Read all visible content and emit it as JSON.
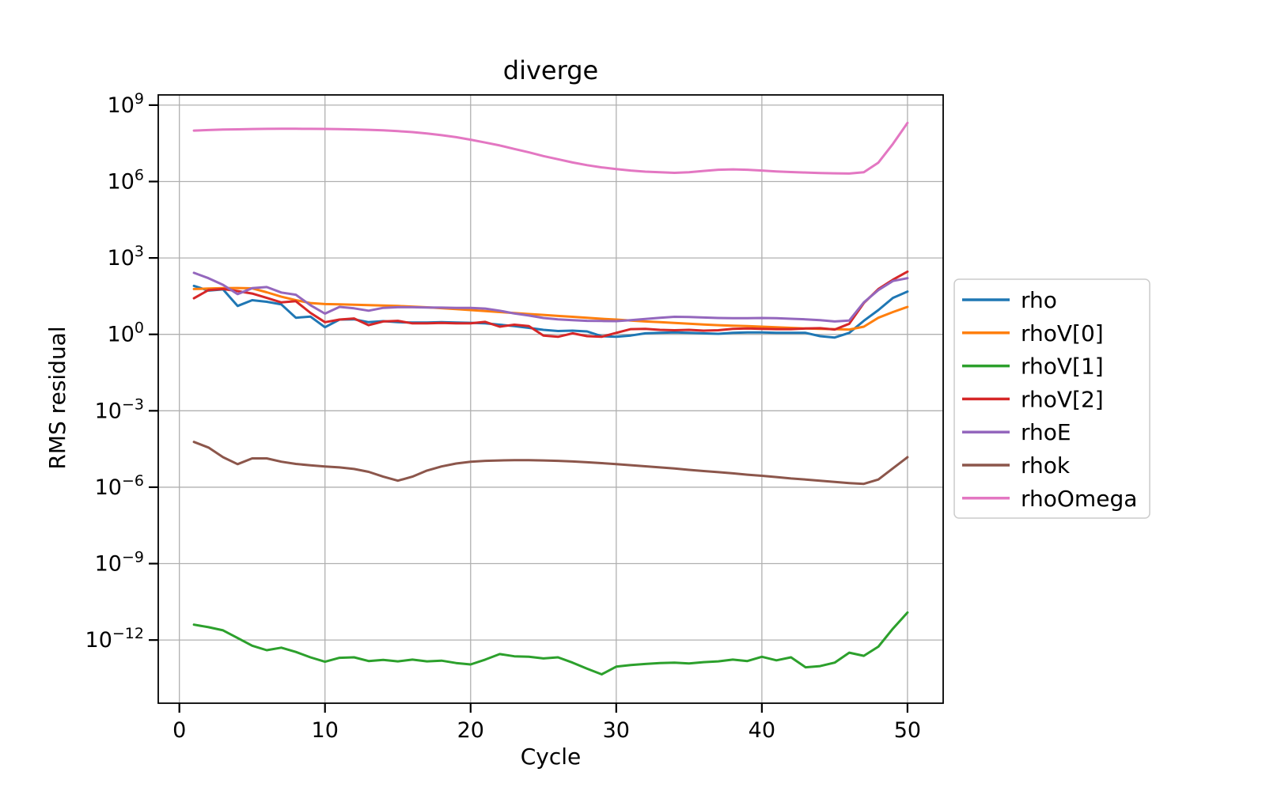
{
  "figure": {
    "title": "diverge",
    "xlabel": "Cycle",
    "ylabel": "RMS residual"
  },
  "chart_data": {
    "type": "line",
    "title": "diverge",
    "xlabel": "Cycle",
    "ylabel": "RMS residual",
    "grid": true,
    "background_color": "#ffffff",
    "grid_color": "#b0b0b0",
    "spine_color": "#000000",
    "legend": {
      "position": "outside-right",
      "border_color": "#cccccc",
      "fill_color": "#ffffff"
    },
    "x_axis": {
      "label": "Cycle",
      "min": -1.45,
      "max": 52.45,
      "ticks": [
        0,
        10,
        20,
        30,
        40,
        50
      ]
    },
    "y_axis": {
      "label": "RMS residual",
      "scale": "log",
      "top_exponent": 9.4,
      "bottom_exponent": -14.48,
      "tick_exponents": [
        9,
        6,
        3,
        0,
        -3,
        -6,
        -9,
        -12
      ]
    },
    "x": [
      1,
      2,
      3,
      4,
      5,
      6,
      7,
      8,
      9,
      10,
      11,
      12,
      13,
      14,
      15,
      16,
      17,
      18,
      19,
      20,
      21,
      22,
      23,
      24,
      25,
      26,
      27,
      28,
      29,
      30,
      31,
      32,
      33,
      34,
      35,
      36,
      37,
      38,
      39,
      40,
      41,
      42,
      43,
      44,
      45,
      46,
      47,
      48,
      49,
      50
    ],
    "series": [
      {
        "name": "rho",
        "color": "#1f77b4",
        "values": [
          80,
          52,
          58,
          13,
          22,
          19,
          15,
          4.5,
          5,
          1.9,
          3.8,
          3.9,
          3,
          3.3,
          3,
          2.9,
          2.9,
          3,
          2.9,
          2.85,
          2.7,
          2.4,
          2.1,
          1.8,
          1.5,
          1.35,
          1.4,
          1.3,
          0.85,
          0.8,
          0.9,
          1.1,
          1.15,
          1.2,
          1.15,
          1.1,
          1.05,
          1.15,
          1.2,
          1.2,
          1.15,
          1.15,
          1.15,
          0.85,
          0.75,
          1.15,
          3.4,
          9,
          27,
          48
        ]
      },
      {
        "name": "rhoV[0]",
        "color": "#ff7f0e",
        "values": [
          60,
          63,
          65,
          66,
          64,
          45,
          30,
          22,
          17,
          15.5,
          15,
          14.5,
          14,
          13.5,
          13,
          12.3,
          11.5,
          10.7,
          9.8,
          9,
          8.2,
          7.5,
          6.9,
          6.3,
          5.8,
          5.3,
          4.9,
          4.5,
          4.1,
          3.8,
          3.5,
          3.2,
          3,
          2.8,
          2.6,
          2.45,
          2.3,
          2.2,
          2.1,
          2,
          1.9,
          1.8,
          1.7,
          1.65,
          1.6,
          1.55,
          2,
          4.5,
          7.5,
          12
        ]
      },
      {
        "name": "rhoV[1]",
        "color": "#2ca02c",
        "values": [
          4e-12,
          3.2e-12,
          2.4e-12,
          1.2e-12,
          6e-13,
          4e-13,
          5e-13,
          3.4e-13,
          2.1e-13,
          1.4e-13,
          2e-13,
          2.1e-13,
          1.5e-13,
          1.65e-13,
          1.45e-13,
          1.7e-13,
          1.45e-13,
          1.55e-13,
          1.25e-13,
          1.1e-13,
          1.7e-13,
          2.8e-13,
          2.3e-13,
          2.2e-13,
          1.9e-13,
          2.1e-13,
          1.3e-13,
          7.5e-14,
          4.5e-14,
          9e-14,
          1.05e-13,
          1.15e-13,
          1.25e-13,
          1.3e-13,
          1.2e-13,
          1.35e-13,
          1.45e-13,
          1.7e-13,
          1.5e-13,
          2.2e-13,
          1.6e-13,
          2.1e-13,
          8.5e-14,
          9.5e-14,
          1.3e-13,
          3.2e-13,
          2.4e-13,
          5.5e-13,
          2.8e-12,
          1.2e-11
        ]
      },
      {
        "name": "rhoV[2]",
        "color": "#d62728",
        "values": [
          26,
          55,
          60,
          50,
          40,
          27,
          18,
          20,
          7,
          3,
          3.8,
          4.2,
          2.3,
          3.2,
          3.4,
          2.7,
          2.7,
          2.8,
          2.7,
          2.7,
          3.1,
          2,
          2.4,
          2.1,
          0.9,
          0.8,
          1.1,
          0.85,
          0.8,
          1.15,
          1.6,
          1.65,
          1.5,
          1.45,
          1.5,
          1.4,
          1.45,
          1.65,
          1.7,
          1.65,
          1.6,
          1.6,
          1.7,
          1.75,
          1.55,
          2.6,
          17,
          60,
          140,
          290
        ]
      },
      {
        "name": "rhoE",
        "color": "#9467bd",
        "values": [
          260,
          160,
          88,
          38,
          65,
          72,
          44,
          36,
          14,
          6.5,
          12,
          10.5,
          8.5,
          11,
          11.6,
          11.6,
          11.4,
          11.2,
          11,
          11,
          10.3,
          8.5,
          6.6,
          5.5,
          4.4,
          3.9,
          3.6,
          3.4,
          3.35,
          3.3,
          3.6,
          4,
          4.5,
          4.9,
          4.8,
          4.6,
          4.4,
          4.3,
          4.3,
          4.4,
          4.3,
          4.1,
          3.9,
          3.6,
          3.2,
          3.5,
          18,
          55,
          125,
          160
        ]
      },
      {
        "name": "rhok",
        "color": "#8c564b",
        "values": [
          6e-05,
          3.6e-05,
          1.5e-05,
          8e-06,
          1.35e-05,
          1.35e-05,
          1e-05,
          8.2e-06,
          7.2e-06,
          6.5e-06,
          6e-06,
          5.2e-06,
          4e-06,
          2.6e-06,
          1.8e-06,
          2.6e-06,
          4.5e-06,
          6.5e-06,
          8.5e-06,
          1e-05,
          1.08e-05,
          1.12e-05,
          1.15e-05,
          1.15e-05,
          1.12e-05,
          1.08e-05,
          1.02e-05,
          9.5e-06,
          8.8e-06,
          8e-06,
          7.3e-06,
          6.6e-06,
          6e-06,
          5.4e-06,
          4.8e-06,
          4.3e-06,
          3.9e-06,
          3.5e-06,
          3.1e-06,
          2.8e-06,
          2.5e-06,
          2.2e-06,
          2e-06,
          1.8e-06,
          1.6e-06,
          1.45e-06,
          1.35e-06,
          2e-06,
          5.5e-06,
          1.5e-05
        ]
      },
      {
        "name": "rhoOmega",
        "color": "#e377c2",
        "values": [
          100000000.0,
          105000000.0,
          110000000.0,
          112000000.0,
          115000000.0,
          117000000.0,
          118000000.0,
          118000000.0,
          117000000.0,
          116000000.0,
          114000000.0,
          111000000.0,
          107000000.0,
          102000000.0,
          95000000.0,
          87000000.0,
          77000000.0,
          66000000.0,
          55000000.0,
          44000000.0,
          34000000.0,
          26000000.0,
          19000000.0,
          14000000.0,
          10000000.0,
          7500000.0,
          5600000.0,
          4400000.0,
          3600000.0,
          3100000.0,
          2700000.0,
          2450000.0,
          2300000.0,
          2200000.0,
          2300000.0,
          2600000.0,
          2900000.0,
          3000000.0,
          2900000.0,
          2700000.0,
          2500000.0,
          2350000.0,
          2250000.0,
          2150000.0,
          2100000.0,
          2050000.0,
          2300000.0,
          5500000.0,
          30000000.0,
          200000000.0
        ]
      }
    ]
  }
}
